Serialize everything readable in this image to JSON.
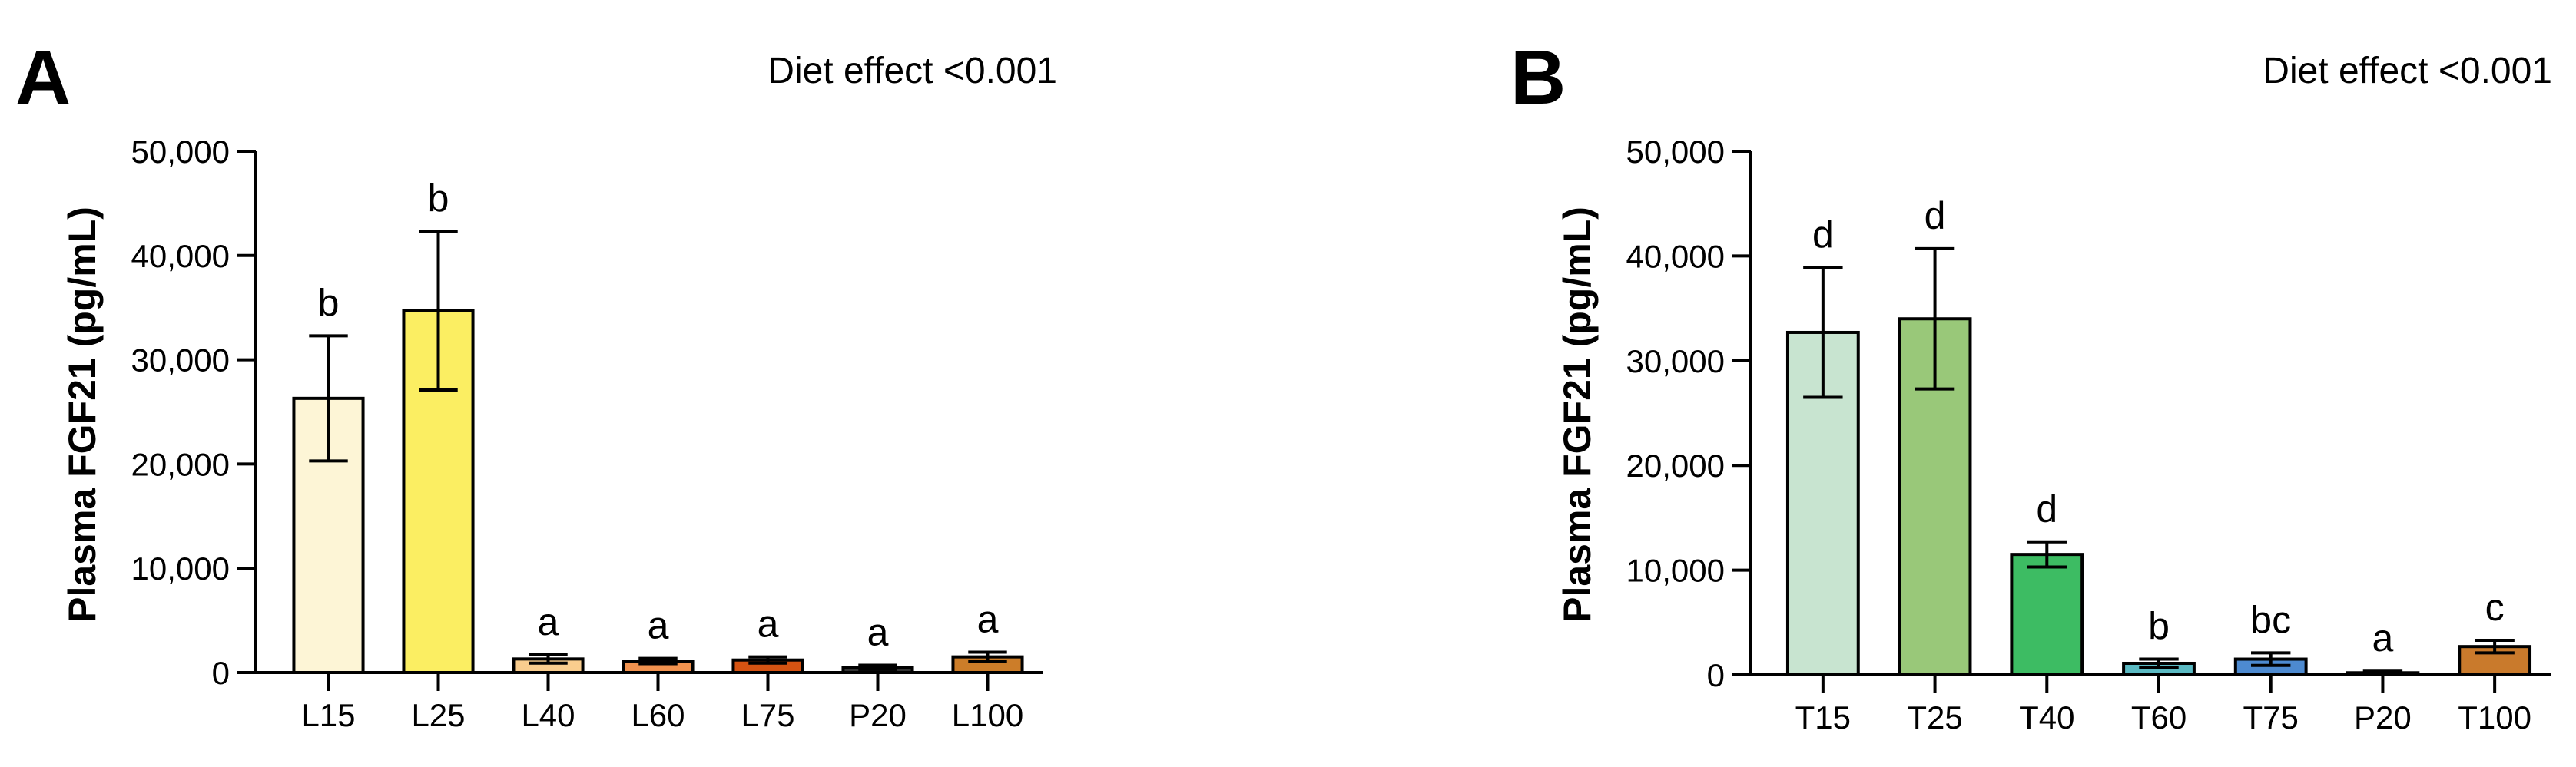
{
  "chart_data": [
    {
      "type": "bar",
      "panel_label": "A",
      "annotation": "Diet effect <0.001",
      "ylabel": "Plasma FGF21 (pg/mL)",
      "xlabel": "",
      "ylim": [
        0,
        50000
      ],
      "yticks": [
        0,
        10000,
        20000,
        30000,
        40000,
        50000
      ],
      "ytick_labels": [
        "0",
        "10,000",
        "20,000",
        "30,000",
        "40,000",
        "50,000"
      ],
      "categories": [
        "L15",
        "L25",
        "L40",
        "L60",
        "L75",
        "P20",
        "L100"
      ],
      "values": [
        26300,
        34700,
        1300,
        1100,
        1200,
        500,
        1500
      ],
      "errors": [
        6000,
        7600,
        400,
        250,
        300,
        200,
        450
      ],
      "significance": [
        "b",
        "b",
        "a",
        "a",
        "a",
        "a",
        "a"
      ],
      "colors": [
        "#fdf5d6",
        "#fbee62",
        "#f9cd8e",
        "#f1924f",
        "#d55312",
        "#333333",
        "#cc7d29"
      ],
      "grid": false
    },
    {
      "type": "bar",
      "panel_label": "B",
      "annotation": "Diet effect <0.001",
      "ylabel": "Plasma FGF21 (pg/mL)",
      "xlabel": "",
      "ylim": [
        0,
        50000
      ],
      "yticks": [
        0,
        10000,
        20000,
        30000,
        40000,
        50000
      ],
      "ytick_labels": [
        "0",
        "10,000",
        "20,000",
        "30,000",
        "40,000",
        "50,000"
      ],
      "categories": [
        "T15",
        "T25",
        "T40",
        "T60",
        "T75",
        "P20",
        "T100"
      ],
      "values": [
        32700,
        34000,
        11500,
        1100,
        1500,
        200,
        2700
      ],
      "errors": [
        6200,
        6700,
        1200,
        400,
        600,
        150,
        600
      ],
      "significance": [
        "d",
        "d",
        "d",
        "b",
        "bc",
        "a",
        "c"
      ],
      "colors": [
        "#c8e4d0",
        "#99c879",
        "#3dbc63",
        "#5bbac3",
        "#4d8ad0",
        "#444444",
        "#c97a2c"
      ],
      "grid": false
    }
  ]
}
